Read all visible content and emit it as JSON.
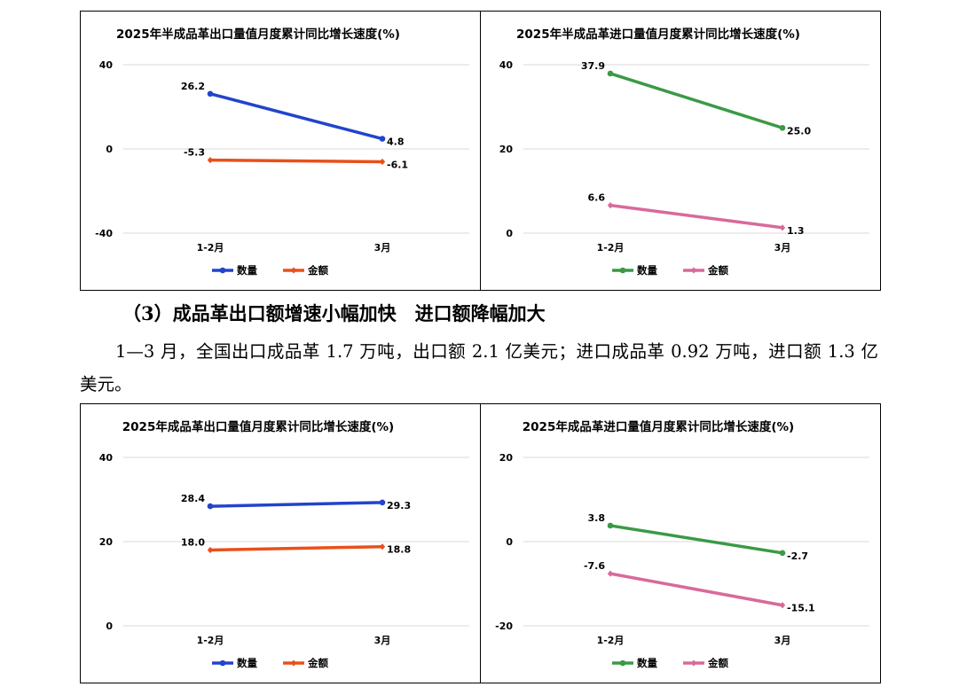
{
  "section": {
    "heading": "（3）成品革出口额增速小幅加快　进口额降幅加大",
    "paragraph": "1—3 月，全国出口成品革 1.7 万吨，出口额 2.1 亿美元；进口成品革 0.92 万吨，进口额 1.3 亿美元。"
  },
  "chart_data": [
    {
      "type": "line",
      "title": "2025年半成品革出口量值月度累计同比增长速度(%)",
      "categories": [
        "1-2月",
        "3月"
      ],
      "yticks": [
        -40,
        0,
        40
      ],
      "ylim": [
        -40,
        40
      ],
      "grid": true,
      "legend": "bottom",
      "series": [
        {
          "name": "数量",
          "values": [
            26.2,
            4.8
          ],
          "labels": [
            "26.2",
            "4.8"
          ],
          "color": "#2244cc",
          "marker": "circle"
        },
        {
          "name": "金额",
          "values": [
            -5.3,
            -6.1
          ],
          "labels": [
            "-5.3",
            "-6.1"
          ],
          "color": "#e8501a",
          "marker": "diamond"
        }
      ]
    },
    {
      "type": "line",
      "title": "2025年半成品革进口量值月度累计同比增长速度(%)",
      "categories": [
        "1-2月",
        "3月"
      ],
      "yticks": [
        0,
        20,
        40
      ],
      "ylim": [
        0,
        40
      ],
      "grid": true,
      "legend": "bottom",
      "series": [
        {
          "name": "数量",
          "values": [
            37.9,
            25.0
          ],
          "labels": [
            "37.9",
            "25.0"
          ],
          "color": "#3a9a45",
          "marker": "circle"
        },
        {
          "name": "金额",
          "values": [
            6.6,
            1.3
          ],
          "labels": [
            "6.6",
            "1.3"
          ],
          "color": "#d9699c",
          "marker": "diamond"
        }
      ]
    },
    {
      "type": "line",
      "title": "2025年成品革出口量值月度累计同比增长速度(%)",
      "categories": [
        "1-2月",
        "3月"
      ],
      "yticks": [
        0,
        20,
        40
      ],
      "ylim": [
        0,
        40
      ],
      "grid": true,
      "legend": "bottom",
      "series": [
        {
          "name": "数量",
          "values": [
            28.4,
            29.3
          ],
          "labels": [
            "28.4",
            "29.3"
          ],
          "color": "#2244cc",
          "marker": "circle"
        },
        {
          "name": "金额",
          "values": [
            18.0,
            18.8
          ],
          "labels": [
            "18.0",
            "18.8"
          ],
          "color": "#e8501a",
          "marker": "diamond"
        }
      ]
    },
    {
      "type": "line",
      "title": "2025年成品革进口量值月度累计同比增长速度(%)",
      "categories": [
        "1-2月",
        "3月"
      ],
      "yticks": [
        -20,
        0,
        20
      ],
      "ylim": [
        -20,
        20
      ],
      "grid": true,
      "legend": "bottom",
      "series": [
        {
          "name": "数量",
          "values": [
            3.8,
            -2.7
          ],
          "labels": [
            "3.8",
            "-2.7"
          ],
          "color": "#3a9a45",
          "marker": "circle"
        },
        {
          "name": "金额",
          "values": [
            -7.6,
            -15.1
          ],
          "labels": [
            "-7.6",
            "-15.1"
          ],
          "color": "#d9699c",
          "marker": "diamond"
        }
      ]
    }
  ]
}
